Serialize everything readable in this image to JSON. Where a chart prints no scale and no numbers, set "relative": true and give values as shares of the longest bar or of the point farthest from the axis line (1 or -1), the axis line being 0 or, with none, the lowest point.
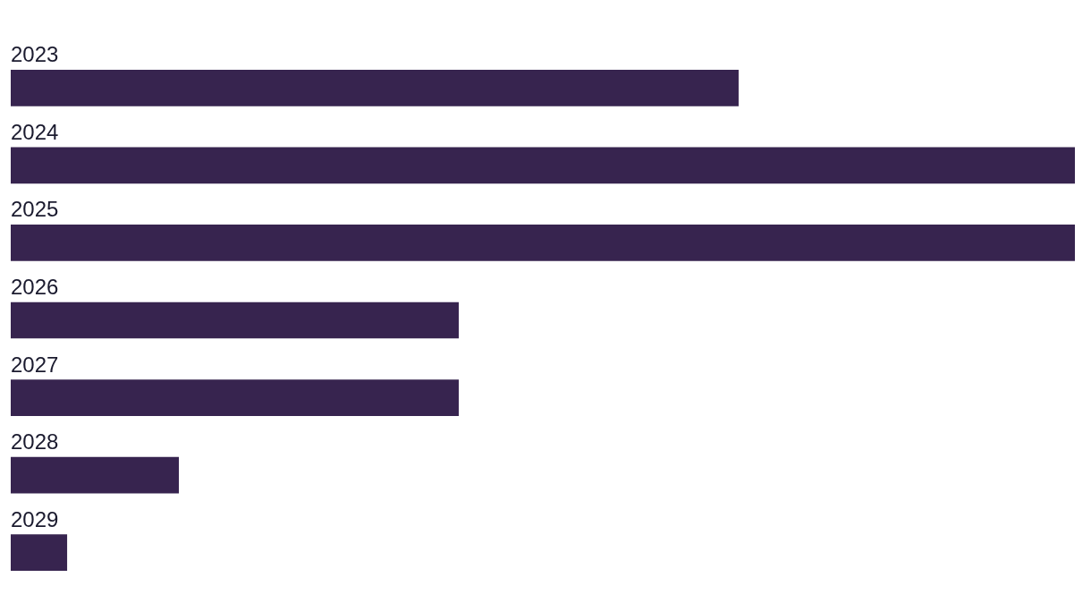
{
  "chart_data": {
    "type": "bar",
    "orientation": "horizontal",
    "relative": true,
    "categories": [
      "2023",
      "2024",
      "2025",
      "2026",
      "2027",
      "2028",
      "2029"
    ],
    "values": [
      0.684,
      1,
      1,
      0.421,
      0.421,
      0.158,
      0.053
    ],
    "color": "#37244f"
  }
}
